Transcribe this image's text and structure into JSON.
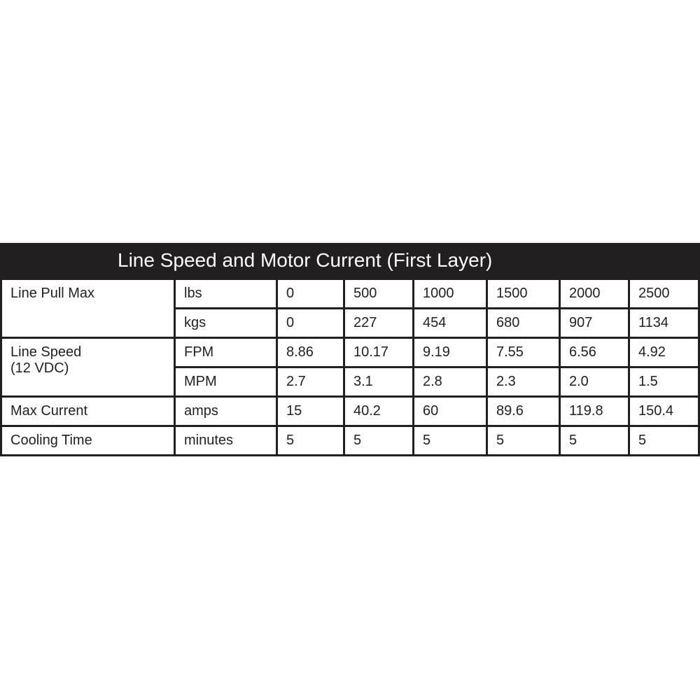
{
  "table": {
    "title": "Line Speed and Motor Current (First Layer)",
    "groups": [
      {
        "label": "Line Pull Max",
        "rows": [
          {
            "unit": "lbs",
            "values": [
              "0",
              "500",
              "1000",
              "1500",
              "2000",
              "2500"
            ]
          },
          {
            "unit": "kgs",
            "values": [
              "0",
              "227",
              "454",
              "680",
              "907",
              "1134"
            ]
          }
        ]
      },
      {
        "label": "Line Speed",
        "label_line2": "(12 VDC)",
        "rows": [
          {
            "unit": "FPM",
            "values": [
              "8.86",
              "10.17",
              "9.19",
              "7.55",
              "6.56",
              "4.92"
            ]
          },
          {
            "unit": "MPM",
            "values": [
              "2.7",
              "3.1",
              "2.8",
              "2.3",
              "2.0",
              "1.5"
            ]
          }
        ]
      },
      {
        "label": "Max Current",
        "rows": [
          {
            "unit": "amps",
            "values": [
              "15",
              "40.2",
              "60",
              "89.6",
              "119.8",
              "150.4"
            ]
          }
        ]
      },
      {
        "label": "Cooling Time",
        "rows": [
          {
            "unit": "minutes",
            "values": [
              "5",
              "5",
              "5",
              "5",
              "5",
              "5"
            ]
          }
        ]
      }
    ],
    "colors": {
      "header_bg": "#231f20",
      "header_text": "#ffffff",
      "border": "#231f20"
    }
  }
}
